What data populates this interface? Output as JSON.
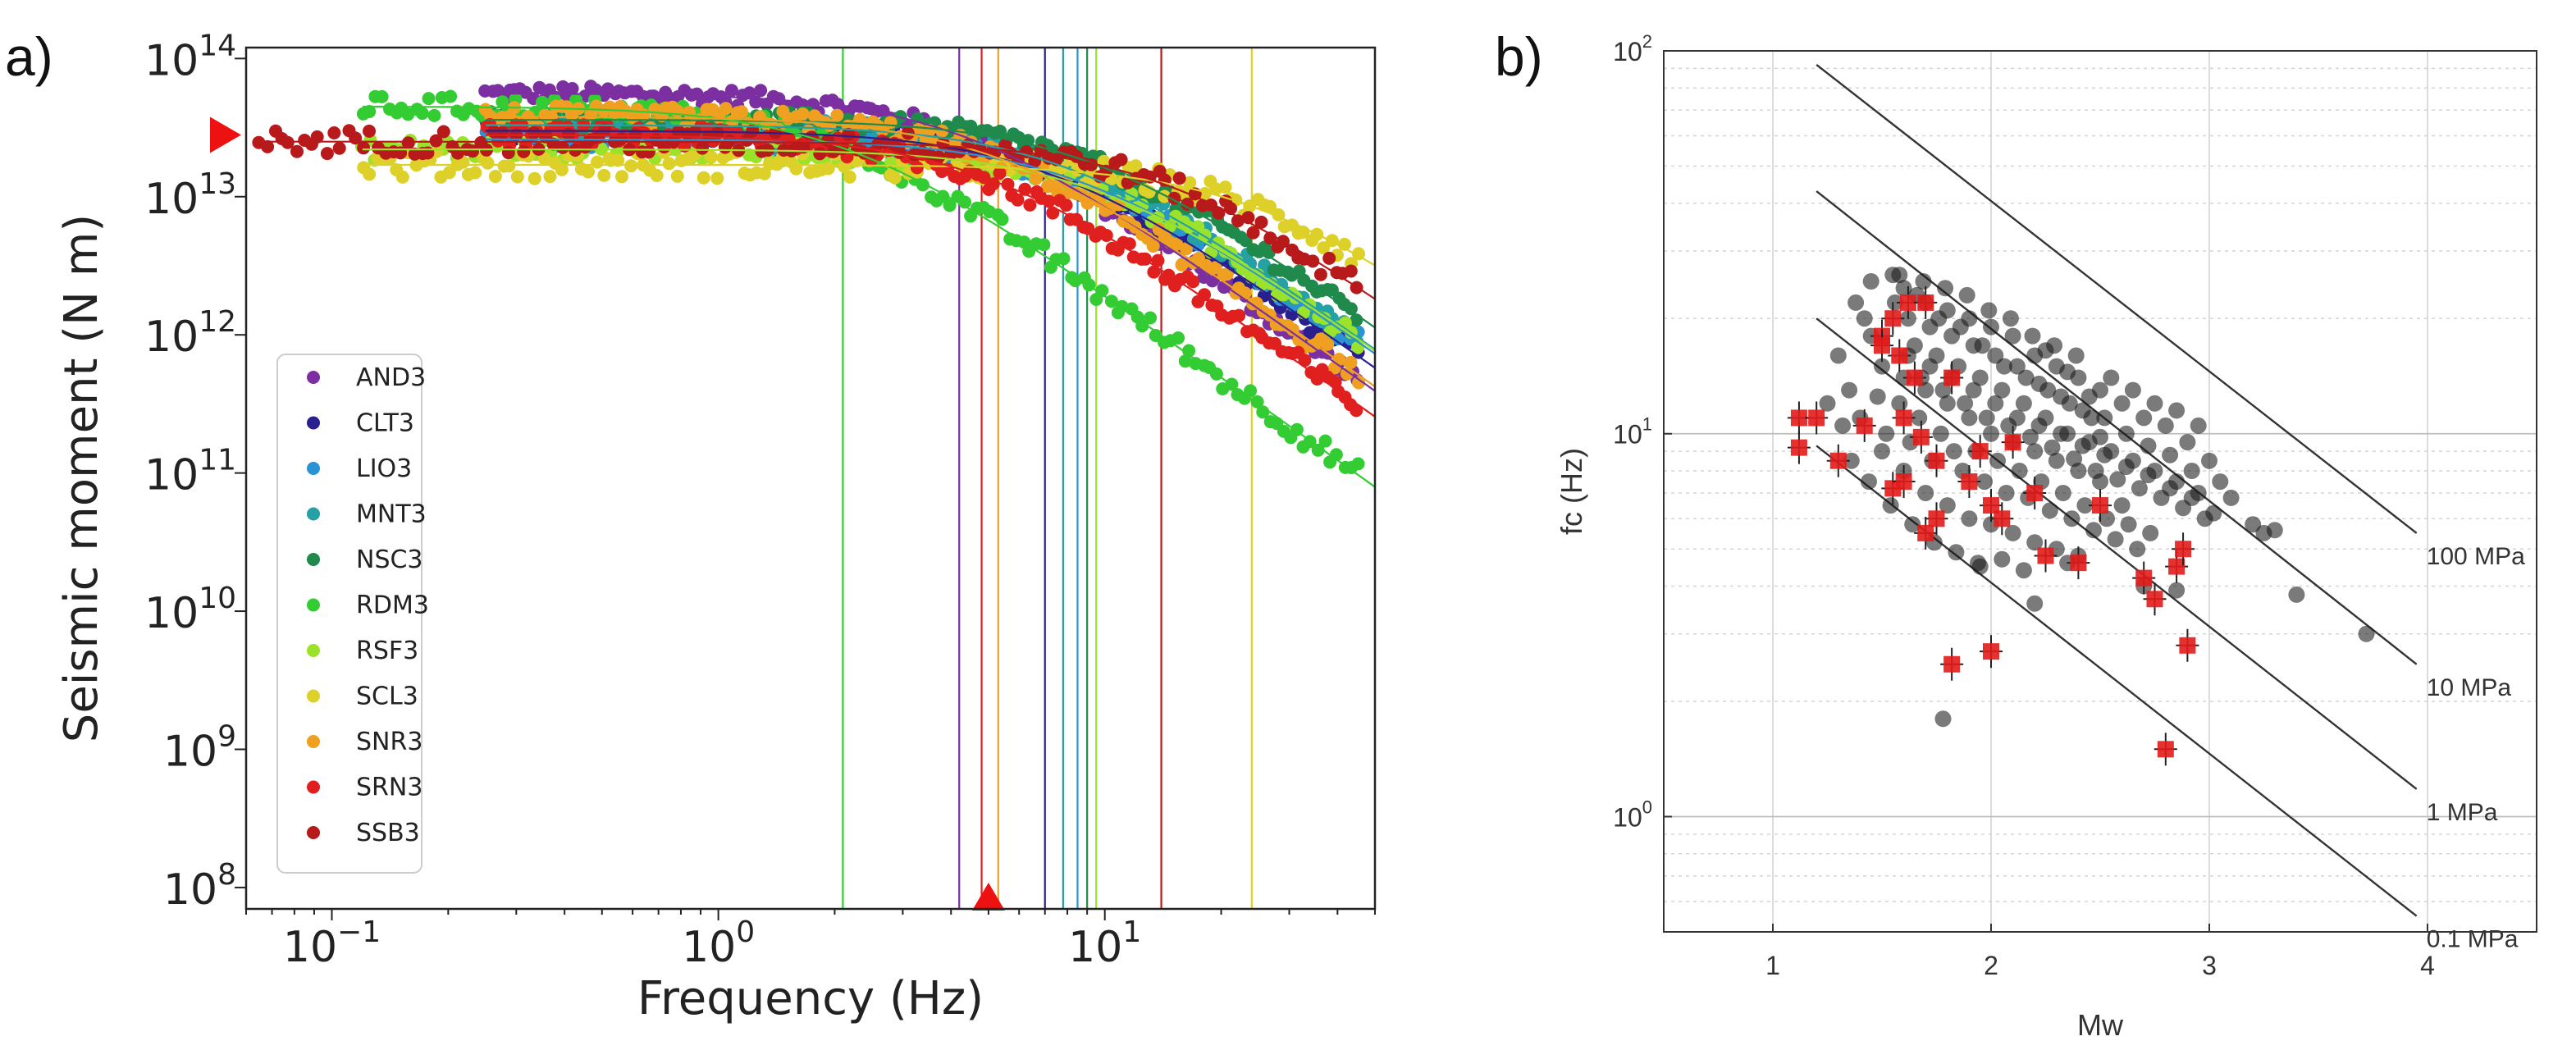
{
  "chart_data": [
    {
      "panel": "a)",
      "type": "scatter",
      "xscale": "log",
      "yscale": "log",
      "xlabel": "Frequency (Hz)",
      "ylabel": "Seismic moment (N m)",
      "xlim": [
        0.06,
        50
      ],
      "ylim": [
        70000000.0,
        120000000000000.0
      ],
      "xtick_labels": [
        {
          "base": "10",
          "exp": "−1",
          "value": 0.1
        },
        {
          "base": "10",
          "exp": "0",
          "value": 1
        },
        {
          "base": "10",
          "exp": "1",
          "value": 10
        }
      ],
      "ytick_labels": [
        {
          "base": "10",
          "exp": "8",
          "value": 100000000.0
        },
        {
          "base": "10",
          "exp": "9",
          "value": 1000000000.0
        },
        {
          "base": "10",
          "exp": "10",
          "value": 10000000000.0
        },
        {
          "base": "10",
          "exp": "11",
          "value": 100000000000.0
        },
        {
          "base": "10",
          "exp": "12",
          "value": 1000000000000.0
        },
        {
          "base": "10",
          "exp": "13",
          "value": 10000000000000.0
        },
        {
          "base": "10",
          "exp": "14",
          "value": 100000000000000.0
        }
      ],
      "legend_position": "lower-left",
      "series": [
        {
          "name": "AND3",
          "color": "#7b2fa0",
          "omega0": 56000000000000.0,
          "fc": 4.2,
          "fmin": 0.25,
          "spread": 0.06
        },
        {
          "name": "CLT3",
          "color": "#2a1f8f",
          "omega0": 30000000000000.0,
          "fc": 7.0,
          "fmin": 0.25,
          "spread": 0.07
        },
        {
          "name": "LIO3",
          "color": "#2a93d5",
          "omega0": 26000000000000.0,
          "fc": 8.5,
          "fmin": 0.25,
          "spread": 0.07
        },
        {
          "name": "MNT3",
          "color": "#25a1a6",
          "omega0": 33000000000000.0,
          "fc": 7.8,
          "fmin": 0.25,
          "spread": 0.07
        },
        {
          "name": "NSC3",
          "color": "#1f8a4c",
          "omega0": 36000000000000.0,
          "fc": 9.0,
          "fmin": 0.25,
          "spread": 0.07
        },
        {
          "name": "RDM3",
          "color": "#33cc33",
          "omega0": 45000000000000.0,
          "fc": 2.1,
          "fmin": 0.12,
          "spread": 0.08
        },
        {
          "name": "RSF3",
          "color": "#9be22a",
          "omega0": 22000000000000.0,
          "fc": 9.5,
          "fmin": 0.12,
          "spread": 0.08
        },
        {
          "name": "SCL3",
          "color": "#ddd028",
          "omega0": 17000000000000.0,
          "fc": 24.0,
          "fmin": 0.12,
          "spread": 0.1
        },
        {
          "name": "SNR3",
          "color": "#f0a020",
          "omega0": 38000000000000.0,
          "fc": 5.3,
          "fmin": 0.25,
          "spread": 0.08
        },
        {
          "name": "SRN3",
          "color": "#e01f1f",
          "omega0": 28000000000000.0,
          "fc": 4.8,
          "fmin": 0.25,
          "spread": 0.08
        },
        {
          "name": "SSB3",
          "color": "#b8191a",
          "omega0": 25000000000000.0,
          "fc": 14.0,
          "fmin": 0.065,
          "spread": 0.09
        }
      ],
      "annotations": {
        "marker_x_hz": 5.0,
        "marker_y_moment": 28000000000000.0,
        "marker_color": "#ee1111"
      }
    },
    {
      "panel": "b)",
      "type": "scatter",
      "yscale": "log",
      "xlabel": "Mw",
      "ylabel": "fc (Hz)",
      "xlim": [
        0.5,
        4.5
      ],
      "ylim": [
        0.5,
        100
      ],
      "xtick_labels": [
        "1",
        "2",
        "3",
        "4"
      ],
      "ytick_labels": [
        {
          "base": "10",
          "exp": "0",
          "value": 1
        },
        {
          "base": "10",
          "exp": "1",
          "value": 10
        },
        {
          "base": "10",
          "exp": "2",
          "value": 100
        }
      ],
      "stress_lines": [
        {
          "label": "100 MPa",
          "mw_start": 1.2,
          "fc_start": 92,
          "mw_end": 3.95,
          "fc_end": 5.5
        },
        {
          "label": "10 MPa",
          "mw_start": 1.2,
          "fc_start": 43,
          "mw_end": 3.95,
          "fc_end": 2.5
        },
        {
          "label": "1 MPa",
          "mw_start": 1.2,
          "fc_start": 20,
          "mw_end": 3.95,
          "fc_end": 1.18
        },
        {
          "label": "0.1 MPa",
          "mw_start": 1.2,
          "fc_start": 9.3,
          "mw_end": 3.95,
          "fc_end": 0.55
        }
      ],
      "black_points": [
        [
          1.38,
          22
        ],
        [
          1.45,
          18
        ],
        [
          1.5,
          15
        ],
        [
          1.55,
          26
        ],
        [
          1.6,
          24
        ],
        [
          1.62,
          20
        ],
        [
          1.65,
          17
        ],
        [
          1.68,
          14
        ],
        [
          1.7,
          22
        ],
        [
          1.72,
          19
        ],
        [
          1.75,
          16
        ],
        [
          1.78,
          13
        ],
        [
          1.8,
          21
        ],
        [
          1.82,
          18
        ],
        [
          1.85,
          15
        ],
        [
          1.88,
          12
        ],
        [
          1.9,
          20
        ],
        [
          1.92,
          17
        ],
        [
          1.95,
          14
        ],
        [
          1.98,
          11
        ],
        [
          2.0,
          19
        ],
        [
          2.02,
          16
        ],
        [
          2.05,
          13
        ],
        [
          2.08,
          10.5
        ],
        [
          2.1,
          18
        ],
        [
          2.12,
          15
        ],
        [
          2.15,
          12
        ],
        [
          2.18,
          9.8
        ],
        [
          2.2,
          16
        ],
        [
          2.22,
          13.5
        ],
        [
          2.25,
          11
        ],
        [
          2.28,
          9.2
        ],
        [
          2.3,
          15
        ],
        [
          2.32,
          12.5
        ],
        [
          2.35,
          10
        ],
        [
          2.38,
          8.6
        ],
        [
          2.4,
          14
        ],
        [
          2.42,
          11.5
        ],
        [
          2.45,
          9.5
        ],
        [
          2.48,
          8
        ],
        [
          2.5,
          13
        ],
        [
          2.52,
          11
        ],
        [
          2.55,
          9
        ],
        [
          2.58,
          7.6
        ],
        [
          2.6,
          12
        ],
        [
          2.62,
          10
        ],
        [
          2.65,
          8.5
        ],
        [
          2.68,
          7.2
        ],
        [
          2.7,
          11
        ],
        [
          2.72,
          9.3
        ],
        [
          2.75,
          8
        ],
        [
          2.78,
          6.8
        ],
        [
          2.8,
          10.5
        ],
        [
          2.82,
          8.8
        ],
        [
          2.85,
          7.5
        ],
        [
          2.88,
          6.4
        ],
        [
          2.9,
          9.5
        ],
        [
          2.92,
          8
        ],
        [
          2.95,
          7
        ],
        [
          2.98,
          6
        ],
        [
          1.3,
          16
        ],
        [
          1.35,
          13
        ],
        [
          1.4,
          11
        ],
        [
          1.42,
          20
        ],
        [
          1.48,
          12.5
        ],
        [
          1.52,
          10
        ],
        [
          1.58,
          12
        ],
        [
          1.63,
          9.5
        ],
        [
          1.67,
          11
        ],
        [
          1.73,
          8.5
        ],
        [
          1.77,
          10
        ],
        [
          1.83,
          9
        ],
        [
          1.87,
          8
        ],
        [
          1.93,
          9
        ],
        [
          1.97,
          7.5
        ],
        [
          2.03,
          8.5
        ],
        [
          2.07,
          7
        ],
        [
          2.13,
          8
        ],
        [
          2.17,
          6.8
        ],
        [
          2.23,
          7.5
        ],
        [
          2.27,
          6.3
        ],
        [
          2.33,
          7
        ],
        [
          2.37,
          6
        ],
        [
          2.43,
          6.5
        ],
        [
          2.47,
          5.6
        ],
        [
          2.53,
          6
        ],
        [
          2.57,
          5.3
        ],
        [
          2.63,
          5.8
        ],
        [
          2.67,
          5
        ],
        [
          2.73,
          5.5
        ],
        [
          1.56,
          22
        ],
        [
          1.66,
          23
        ],
        [
          1.76,
          20
        ],
        [
          1.86,
          19
        ],
        [
          1.96,
          17
        ],
        [
          2.06,
          15
        ],
        [
          2.16,
          14
        ],
        [
          2.26,
          13
        ],
        [
          2.36,
          12
        ],
        [
          2.46,
          11
        ],
        [
          1.6,
          14
        ],
        [
          1.7,
          13
        ],
        [
          1.8,
          12
        ],
        [
          1.9,
          11
        ],
        [
          2.0,
          10
        ],
        [
          2.1,
          9.5
        ],
        [
          2.2,
          9
        ],
        [
          2.3,
          8.5
        ],
        [
          2.4,
          8
        ],
        [
          2.5,
          7.5
        ],
        [
          1.5,
          9
        ],
        [
          1.6,
          8
        ],
        [
          1.7,
          7
        ],
        [
          1.8,
          6.5
        ],
        [
          1.9,
          6
        ],
        [
          2.0,
          5.8
        ],
        [
          2.1,
          5.5
        ],
        [
          2.2,
          5.2
        ],
        [
          2.3,
          5
        ],
        [
          2.4,
          4.8
        ],
        [
          1.45,
          25
        ],
        [
          1.58,
          26
        ],
        [
          1.69,
          25
        ],
        [
          1.79,
          24
        ],
        [
          1.89,
          23
        ],
        [
          1.99,
          21
        ],
        [
          2.09,
          20
        ],
        [
          2.19,
          18
        ],
        [
          2.29,
          17
        ],
        [
          2.39,
          16
        ],
        [
          2.55,
          14
        ],
        [
          2.65,
          13
        ],
        [
          2.75,
          12
        ],
        [
          2.85,
          11.5
        ],
        [
          2.95,
          10.5
        ],
        [
          3.0,
          8.5
        ],
        [
          3.05,
          7.5
        ],
        [
          3.1,
          6.8
        ],
        [
          3.2,
          5.8
        ],
        [
          3.25,
          5.5
        ],
        [
          3.3,
          5.6
        ],
        [
          3.4,
          3.8
        ],
        [
          3.72,
          3.0
        ],
        [
          2.7,
          4.0
        ],
        [
          2.85,
          3.9
        ],
        [
          2.2,
          3.6
        ],
        [
          1.78,
          1.8
        ],
        [
          1.95,
          4.5
        ],
        [
          2.05,
          4.7
        ],
        [
          2.35,
          4.6
        ],
        [
          1.25,
          12
        ],
        [
          1.32,
          10.5
        ],
        [
          1.36,
          8.5
        ],
        [
          1.44,
          7.5
        ],
        [
          1.54,
          6.5
        ],
        [
          1.64,
          5.8
        ],
        [
          1.74,
          5.2
        ],
        [
          1.84,
          4.9
        ],
        [
          1.94,
          4.6
        ],
        [
          2.15,
          4.4
        ],
        [
          1.62,
          16
        ],
        [
          1.72,
          15
        ],
        [
          1.82,
          14
        ],
        [
          1.92,
          13
        ],
        [
          2.02,
          12
        ],
        [
          2.12,
          11
        ],
        [
          2.22,
          10.5
        ],
        [
          2.32,
          10
        ],
        [
          2.42,
          9.3
        ],
        [
          2.52,
          8.8
        ],
        [
          2.62,
          8.2
        ],
        [
          2.72,
          7.8
        ],
        [
          2.82,
          7.2
        ],
        [
          2.92,
          6.8
        ],
        [
          3.02,
          6.2
        ],
        [
          2.6,
          6.5
        ],
        [
          2.5,
          9.8
        ],
        [
          2.45,
          12.5
        ],
        [
          2.35,
          14.5
        ],
        [
          2.25,
          16.5
        ]
      ],
      "red_points": [
        [
          1.12,
          11
        ],
        [
          1.2,
          11
        ],
        [
          1.12,
          9.2
        ],
        [
          1.3,
          8.5
        ],
        [
          1.42,
          10.5
        ],
        [
          1.5,
          18
        ],
        [
          1.55,
          20
        ],
        [
          1.58,
          16
        ],
        [
          1.62,
          22
        ],
        [
          1.7,
          22
        ],
        [
          1.6,
          11
        ],
        [
          1.68,
          9.8
        ],
        [
          1.75,
          8.5
        ],
        [
          1.55,
          7.2
        ],
        [
          1.6,
          7.5
        ],
        [
          1.7,
          5.5
        ],
        [
          1.75,
          6
        ],
        [
          1.82,
          14
        ],
        [
          1.9,
          7.5
        ],
        [
          1.95,
          9
        ],
        [
          2.0,
          6.5
        ],
        [
          2.05,
          6
        ],
        [
          2.1,
          9.5
        ],
        [
          2.2,
          7
        ],
        [
          2.25,
          4.8
        ],
        [
          2.4,
          4.6
        ],
        [
          2.5,
          6.5
        ],
        [
          2.7,
          4.2
        ],
        [
          2.75,
          3.7
        ],
        [
          2.85,
          4.5
        ],
        [
          2.88,
          5
        ],
        [
          2.9,
          2.8
        ],
        [
          1.82,
          2.5
        ],
        [
          2.0,
          2.7
        ],
        [
          2.8,
          1.5
        ],
        [
          1.65,
          14
        ],
        [
          1.5,
          17
        ]
      ]
    }
  ]
}
